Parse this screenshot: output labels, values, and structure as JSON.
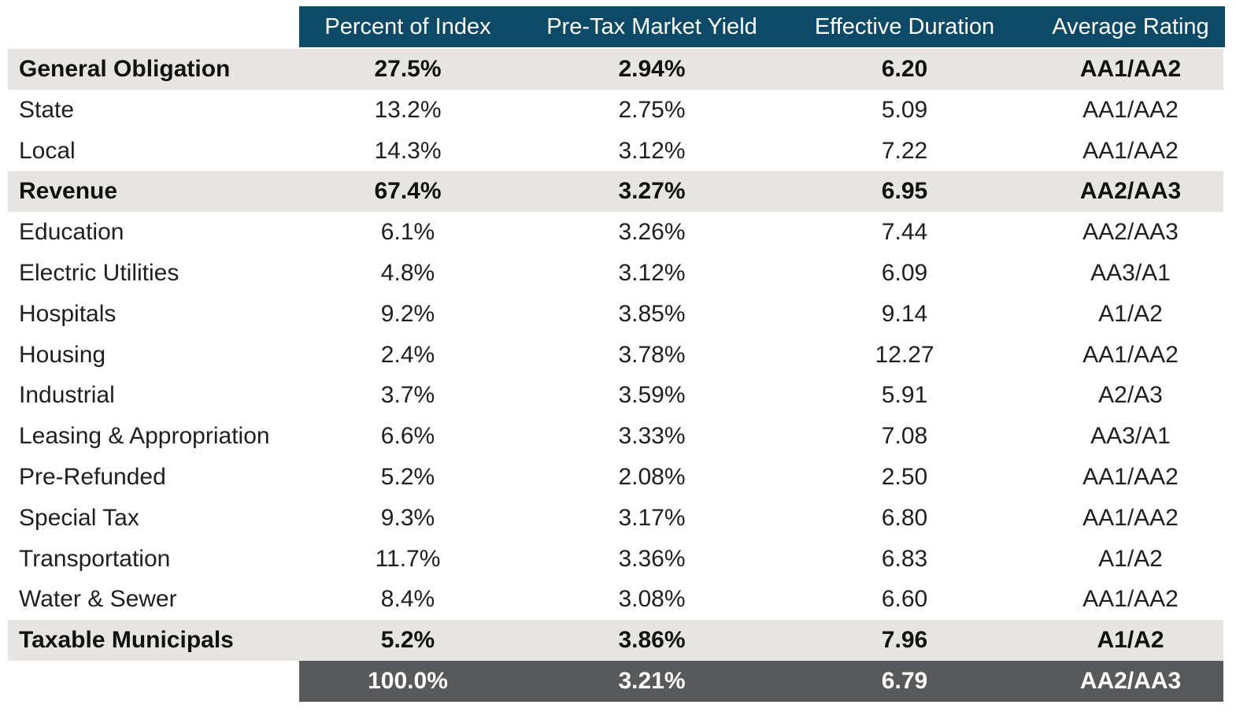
{
  "chart_data": {
    "type": "table",
    "columns": [
      "Percent of Index",
      "Pre-Tax Market Yield",
      "Effective Duration",
      "Average Rating"
    ],
    "rows": [
      {
        "label": "General Obligation",
        "kind": "group",
        "values": [
          "27.5%",
          "2.94%",
          "6.20",
          "AA1/AA2"
        ]
      },
      {
        "label": "State",
        "kind": "item",
        "values": [
          "13.2%",
          "2.75%",
          "5.09",
          "AA1/AA2"
        ]
      },
      {
        "label": "Local",
        "kind": "item",
        "values": [
          "14.3%",
          "3.12%",
          "7.22",
          "AA1/AA2"
        ]
      },
      {
        "label": "Revenue",
        "kind": "group",
        "values": [
          "67.4%",
          "3.27%",
          "6.95",
          "AA2/AA3"
        ]
      },
      {
        "label": "Education",
        "kind": "item",
        "values": [
          "6.1%",
          "3.26%",
          "7.44",
          "AA2/AA3"
        ]
      },
      {
        "label": "Electric Utilities",
        "kind": "item",
        "values": [
          "4.8%",
          "3.12%",
          "6.09",
          "AA3/A1"
        ]
      },
      {
        "label": "Hospitals",
        "kind": "item",
        "values": [
          "9.2%",
          "3.85%",
          "9.14",
          "A1/A2"
        ]
      },
      {
        "label": "Housing",
        "kind": "item",
        "values": [
          "2.4%",
          "3.78%",
          "12.27",
          "AA1/AA2"
        ]
      },
      {
        "label": "Industrial",
        "kind": "item",
        "values": [
          "3.7%",
          "3.59%",
          "5.91",
          "A2/A3"
        ]
      },
      {
        "label": "Leasing & Appropriation",
        "kind": "item",
        "values": [
          "6.6%",
          "3.33%",
          "7.08",
          "AA3/A1"
        ]
      },
      {
        "label": "Pre-Refunded",
        "kind": "item",
        "values": [
          "5.2%",
          "2.08%",
          "2.50",
          "AA1/AA2"
        ]
      },
      {
        "label": "Special Tax",
        "kind": "item",
        "values": [
          "9.3%",
          "3.17%",
          "6.80",
          "AA1/AA2"
        ]
      },
      {
        "label": "Transportation",
        "kind": "item",
        "values": [
          "11.7%",
          "3.36%",
          "6.83",
          "A1/A2"
        ]
      },
      {
        "label": "Water & Sewer",
        "kind": "item",
        "values": [
          "8.4%",
          "3.08%",
          "6.60",
          "AA1/AA2"
        ]
      },
      {
        "label": "Taxable Municipals",
        "kind": "group",
        "values": [
          "5.2%",
          "3.86%",
          "7.96",
          "A1/A2"
        ]
      },
      {
        "label": "",
        "kind": "total",
        "values": [
          "100.0%",
          "3.21%",
          "6.79",
          "AA2/AA3"
        ]
      }
    ]
  },
  "colors": {
    "header_background": "#0d4a68",
    "header_text": "#ffffff",
    "group_band": "#e6e5e1",
    "total_band": "#58595b",
    "total_text": "#ffffff",
    "body_text": "#1f1f1f"
  }
}
